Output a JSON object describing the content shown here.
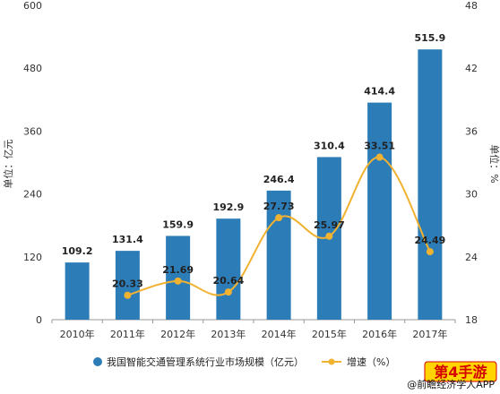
{
  "chart_data": {
    "type": "bar",
    "categories": [
      "2010年",
      "2011年",
      "2012年",
      "2013年",
      "2014年",
      "2015年",
      "2016年",
      "2017年"
    ],
    "series": [
      {
        "name": "我国智能交通管理系统行业市场规模（亿元）",
        "type": "bar",
        "axis": "left",
        "color": "#2c7cb8",
        "values": [
          109.2,
          131.4,
          159.9,
          192.9,
          246.4,
          310.4,
          414.4,
          515.9
        ],
        "labels": [
          "109.2",
          "131.4",
          "159.9",
          "192.9",
          "246.4",
          "310.4",
          "414.4",
          "515.9"
        ]
      },
      {
        "name": "增速（%）",
        "type": "line",
        "axis": "right",
        "color": "#f0b230",
        "values": [
          null,
          20.33,
          21.69,
          20.64,
          27.73,
          25.97,
          33.51,
          24.49
        ],
        "labels": [
          "",
          "20.33",
          "21.69",
          "20.64",
          "27.73",
          "25.97",
          "33.51",
          "24.49"
        ]
      }
    ],
    "ylabel": "单位：亿元",
    "y2label": "单位：%",
    "ylim": [
      0,
      600
    ],
    "y2lim": [
      18,
      48
    ],
    "yticks": [
      "0",
      "120",
      "240",
      "360",
      "480",
      "600"
    ],
    "y2ticks": [
      "18",
      "24",
      "30",
      "36",
      "42",
      "48"
    ],
    "grid": false,
    "legend_position": "bottom"
  },
  "watermark": {
    "source": "@前瞻经济学人APP",
    "badge": "第4手游"
  }
}
